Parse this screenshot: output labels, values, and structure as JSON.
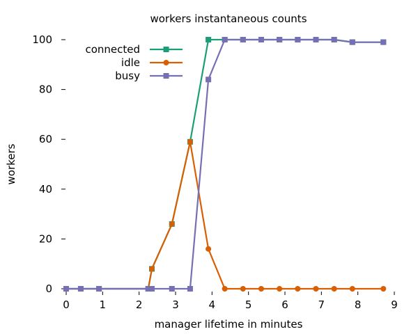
{
  "chart_data": {
    "type": "line",
    "title": "workers instantaneous counts",
    "xlabel": "manager lifetime in minutes",
    "ylabel": "workers",
    "xlim": [
      0,
      9
    ],
    "ylim": [
      0,
      100
    ],
    "xticks": [
      0,
      1,
      2,
      3,
      4,
      5,
      6,
      7,
      8,
      9
    ],
    "yticks": [
      0,
      20,
      40,
      60,
      80,
      100
    ],
    "xtick_labels": [
      "0",
      "1",
      "2",
      "3",
      "4",
      "5",
      "6",
      "7",
      "8",
      "9"
    ],
    "ytick_labels": [
      "0",
      "20",
      "40",
      "60",
      "80",
      "100"
    ],
    "grid": false,
    "legend_position": "top-left",
    "series": [
      {
        "name": "connected",
        "color": "#1b9e77",
        "marker": "square",
        "x": [
          0,
          0.4,
          0.9,
          2.25,
          2.35,
          2.9,
          3.4,
          3.9,
          4.35,
          4.85,
          5.35,
          5.85,
          6.35,
          6.85,
          7.35,
          7.85,
          8.7
        ],
        "y": [
          0,
          0,
          0,
          0,
          8,
          26,
          59,
          100,
          100,
          100,
          100,
          100,
          100,
          100,
          100,
          99,
          99
        ]
      },
      {
        "name": "idle",
        "color": "#d95f02",
        "marker": "circle",
        "x": [
          0,
          0.4,
          0.9,
          2.25,
          2.35,
          2.9,
          3.4,
          3.9,
          4.35,
          4.85,
          5.35,
          5.85,
          6.35,
          6.85,
          7.35,
          7.85,
          8.7
        ],
        "y": [
          0,
          0,
          0,
          0,
          8,
          26,
          59,
          16,
          0,
          0,
          0,
          0,
          0,
          0,
          0,
          0,
          0
        ]
      },
      {
        "name": "busy",
        "color": "#7570b3",
        "marker": "square",
        "x": [
          0,
          0.4,
          0.9,
          2.25,
          2.35,
          2.9,
          3.4,
          3.9,
          4.35,
          4.85,
          5.35,
          5.85,
          6.35,
          6.85,
          7.35,
          7.85,
          8.7
        ],
        "y": [
          0,
          0,
          0,
          0,
          0,
          0,
          0,
          84,
          100,
          100,
          100,
          100,
          100,
          100,
          100,
          99,
          99
        ]
      }
    ]
  }
}
